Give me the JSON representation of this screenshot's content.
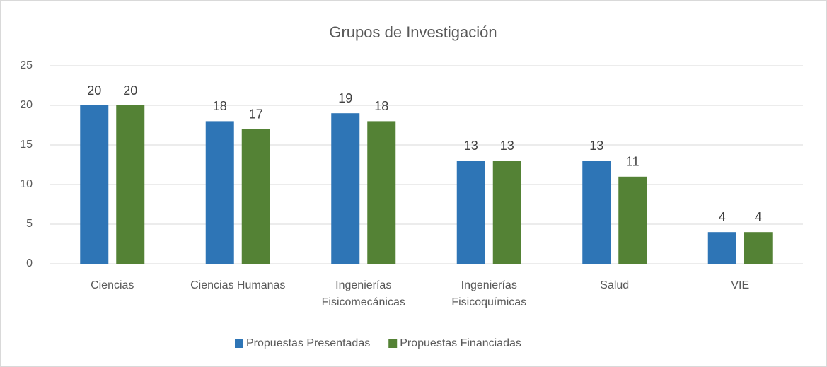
{
  "chart_data": {
    "type": "bar",
    "title": "Grupos de Investigación",
    "categories": [
      "Ciencias",
      "Ciencias Humanas",
      "Ingenierías Fisicomecánicas",
      "Ingenierías Fisicoquímicas",
      "Salud",
      "VIE"
    ],
    "series": [
      {
        "name": "Propuestas Presentadas",
        "color": "#2e75b6",
        "values": [
          20,
          18,
          19,
          13,
          13,
          4
        ]
      },
      {
        "name": "Propuestas Financiadas",
        "color": "#548235",
        "values": [
          20,
          17,
          18,
          13,
          11,
          4
        ]
      }
    ],
    "ylim": [
      0,
      25
    ],
    "yticks": [
      0,
      5,
      10,
      15,
      20,
      25
    ],
    "grid": true,
    "legend": "bottom"
  }
}
